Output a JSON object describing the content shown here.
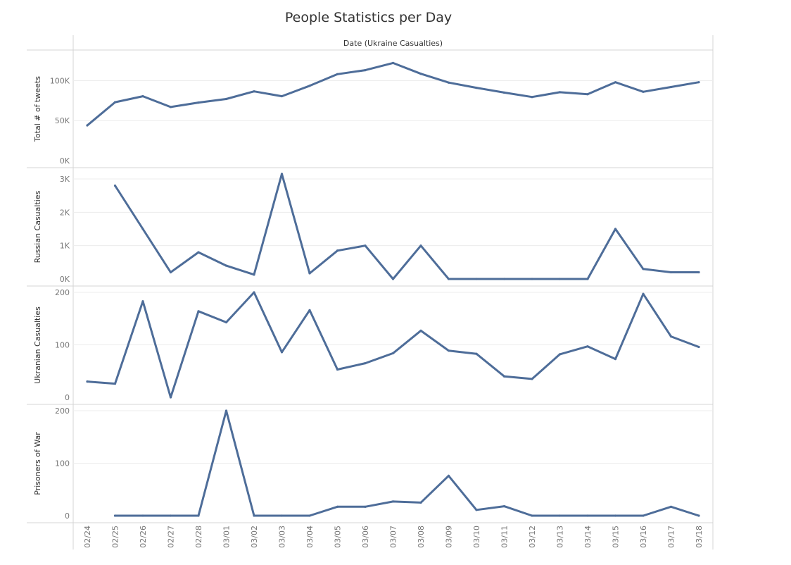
{
  "title": "People Statistics per Day",
  "chart_data": {
    "type": "line",
    "column_header": "Date (Ukraine Casualties)",
    "categories": [
      "02/24",
      "02/25",
      "02/26",
      "02/27",
      "02/28",
      "03/01",
      "03/02",
      "03/03",
      "03/04",
      "03/05",
      "03/06",
      "03/07",
      "03/08",
      "03/09",
      "03/10",
      "03/11",
      "03/12",
      "03/13",
      "03/14",
      "03/15",
      "03/16",
      "03/17",
      "03/18"
    ],
    "line_color": "#4e6d99",
    "panels": [
      {
        "ylabel": "Total # of tweets",
        "ylim": [
          0,
          125000
        ],
        "yticks": [
          {
            "v": 0,
            "label": "0K"
          },
          {
            "v": 50000,
            "label": "50K"
          },
          {
            "v": 100000,
            "label": "100K"
          }
        ],
        "values": [
          44000,
          73000,
          80500,
          67000,
          72500,
          77000,
          86500,
          80500,
          93500,
          108000,
          113000,
          122000,
          108500,
          97500,
          91000,
          85000,
          79500,
          85500,
          83000,
          98000,
          86000,
          92000,
          98000
        ]
      },
      {
        "ylabel": "Russian Casualties",
        "ylim": [
          0,
          3000
        ],
        "yticks": [
          {
            "v": 0,
            "label": "0K"
          },
          {
            "v": 1000,
            "label": "1K"
          },
          {
            "v": 2000,
            "label": "2K"
          },
          {
            "v": 3000,
            "label": "3K"
          }
        ],
        "values": [
          null,
          2800,
          1500,
          200,
          800,
          400,
          130,
          3150,
          170,
          850,
          1000,
          0,
          1000,
          0,
          0,
          0,
          0,
          0,
          0,
          1500,
          300,
          200,
          200
        ]
      },
      {
        "ylabel": "Ukranian Casualties",
        "ylim": [
          0,
          200
        ],
        "yticks": [
          {
            "v": 0,
            "label": "0"
          },
          {
            "v": 100,
            "label": "100"
          },
          {
            "v": 200,
            "label": "200"
          }
        ],
        "values": [
          30,
          26,
          183,
          0,
          164,
          143,
          200,
          86,
          166,
          53,
          65,
          84,
          127,
          89,
          83,
          40,
          35,
          82,
          97,
          73,
          197,
          116,
          96
        ]
      },
      {
        "ylabel": "Prisoners of War",
        "ylim": [
          0,
          200
        ],
        "yticks": [
          {
            "v": 0,
            "label": "0"
          },
          {
            "v": 100,
            "label": "100"
          },
          {
            "v": 200,
            "label": "200"
          }
        ],
        "values": [
          null,
          0,
          0,
          0,
          0,
          200,
          0,
          0,
          0,
          17,
          17,
          27,
          25,
          76,
          11,
          18,
          0,
          0,
          0,
          0,
          0,
          17,
          0
        ]
      }
    ]
  }
}
